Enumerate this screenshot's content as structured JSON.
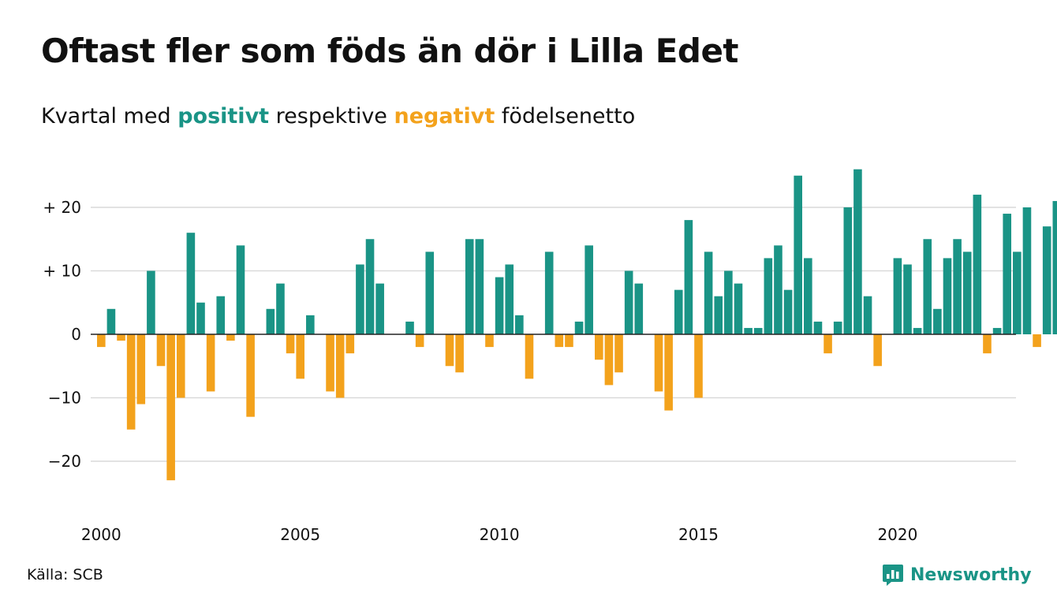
{
  "title": "Oftast fler som föds än dör i Lilla Edet",
  "subtitle": {
    "prefix": "Kvartal med",
    "positive_word": "positivt",
    "middle": "respektive",
    "negative_word": "negativt",
    "suffix": "födelsenetto"
  },
  "source": "Källa: SCB",
  "brand": {
    "name": "Newsworthy",
    "icon": "newsworthy-logo-icon"
  },
  "colors": {
    "positive": "#1a9486",
    "negative": "#f3a21c",
    "grid": "#d9d9d9",
    "zero": "#222222"
  },
  "chart_data": {
    "type": "bar",
    "x_start": "2000 Q1",
    "x_ticks": [
      "2000",
      "2005",
      "2010",
      "2015",
      "2020"
    ],
    "y_ticks": [
      {
        "value": 20,
        "label": "+ 20"
      },
      {
        "value": 10,
        "label": "+ 10"
      },
      {
        "value": 0,
        "label": "0"
      },
      {
        "value": -10,
        "label": "−10"
      },
      {
        "value": -20,
        "label": "−20"
      }
    ],
    "ylim": [
      -27,
      27
    ],
    "grid": true,
    "values": [
      -2,
      4,
      -1,
      -15,
      -11,
      10,
      -5,
      -23,
      -10,
      16,
      5,
      -9,
      6,
      -1,
      14,
      -13,
      0,
      4,
      8,
      -3,
      -7,
      3,
      0,
      -9,
      -10,
      -3,
      11,
      15,
      8,
      0,
      0,
      2,
      -2,
      13,
      0,
      -5,
      -6,
      15,
      15,
      -2,
      9,
      11,
      3,
      -7,
      0,
      13,
      -2,
      -2,
      2,
      14,
      -4,
      -8,
      -6,
      10,
      8,
      0,
      -9,
      -12,
      7,
      18,
      -10,
      13,
      6,
      10,
      8,
      1,
      1,
      12,
      14,
      7,
      25,
      12,
      2,
      -3,
      2,
      20,
      26,
      6,
      -5,
      0,
      12,
      11,
      1,
      15,
      4,
      12,
      15,
      13,
      22,
      -3,
      1,
      19,
      13,
      20,
      -2,
      17,
      21
    ]
  }
}
